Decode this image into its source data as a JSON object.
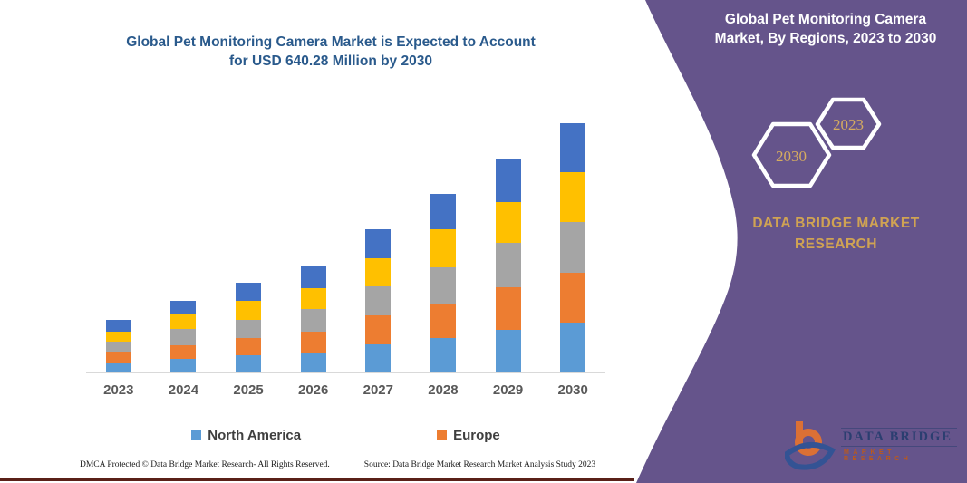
{
  "title": {
    "line1": "Global Pet Monitoring Camera Market is Expected to Account",
    "line2": "for USD 640.28 Million by 2030"
  },
  "sidebar": {
    "background_color": "#65548B",
    "heading_line1": "Global Pet Monitoring Camera",
    "heading_line2": "Market, By Regions, 2023 to 2030",
    "hexagon_back_label": "2023",
    "hexagon_front_label": "2030",
    "brand_line1": "DATA BRIDGE MARKET",
    "brand_line2": "RESEARCH",
    "logo_name": "DATA BRIDGE",
    "logo_subtitle": "MARKET RESEARCH",
    "gold_color": "#D0A353"
  },
  "chart_data": {
    "type": "bar",
    "stacked": true,
    "title": "Global Pet Monitoring Camera Market is Expected to Account for USD 640.28 Million by 2030",
    "xlabel": "",
    "ylabel": "",
    "units": "USD Million (estimated; only 2030 total of 640.28 is labeled)",
    "categories": [
      "2023",
      "2024",
      "2025",
      "2026",
      "2027",
      "2028",
      "2029",
      "2030"
    ],
    "series": [
      {
        "name": "North America",
        "color": "#5B9BD5",
        "in_legend": true,
        "values": [
          24,
          34,
          44,
          48,
          72,
          88,
          109,
          127
        ]
      },
      {
        "name": "Europe",
        "color": "#ED7D31",
        "in_legend": true,
        "values": [
          30,
          36,
          44,
          58,
          74,
          89,
          109,
          129
        ]
      },
      {
        "name": "unlabeled-region-gray",
        "color": "#A5A5A5",
        "in_legend": false,
        "values": [
          26,
          42,
          47,
          58,
          76,
          93,
          115,
          130
        ]
      },
      {
        "name": "unlabeled-region-yellow",
        "color": "#FFC000",
        "in_legend": false,
        "values": [
          24,
          36,
          48,
          52,
          71,
          97,
          105,
          128
        ]
      },
      {
        "name": "unlabeled-region-darkblue",
        "color": "#4472C4",
        "in_legend": false,
        "values": [
          31,
          36,
          47,
          57,
          74,
          91,
          112,
          126
        ]
      }
    ],
    "totals": [
      135,
      184,
      230,
      273,
      367,
      458,
      550,
      640.28
    ],
    "ylim": [
      0,
      655
    ],
    "gridlines": false,
    "legend_position": "bottom"
  },
  "legend": [
    {
      "label": "North America",
      "color": "#5B9BD5"
    },
    {
      "label": "Europe",
      "color": "#ED7D31"
    }
  ],
  "footer": {
    "left": "DMCA Protected © Data Bridge Market Research-  All Rights Reserved.",
    "source": "Source: Data Bridge Market Research  Market Analysis Study 2023"
  }
}
